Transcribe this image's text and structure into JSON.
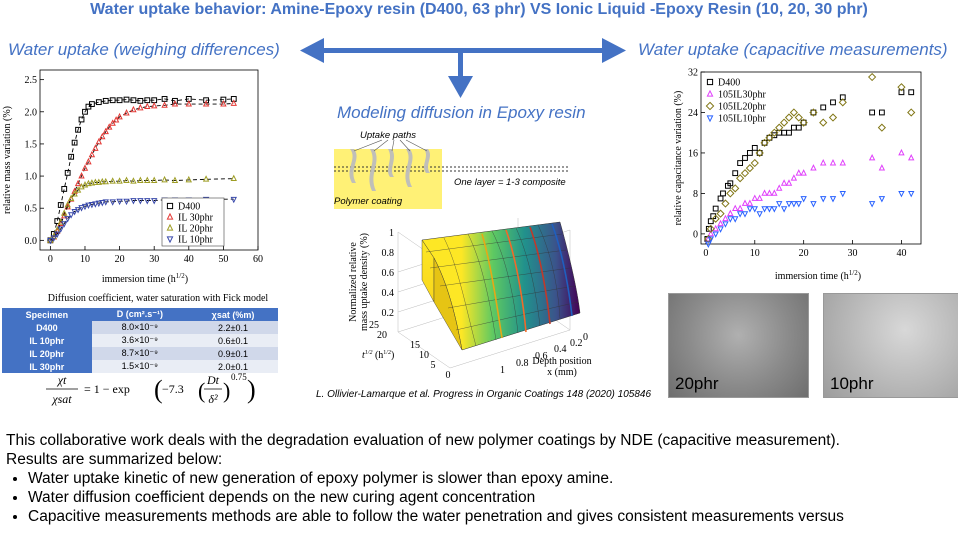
{
  "header": {
    "title": "Water uptake behavior: Amine-Epoxy resin (D400, 63 phr) VS Ionic Liquid -Epoxy Resin (10, 20, 30 phr)"
  },
  "sections": {
    "left": "Water uptake (weighing differences)",
    "middle": "Modeling diffusion in Epoxy resin",
    "right": "Water uptake (capacitive measurements)"
  },
  "left_chart": {
    "ylabel": "relative mass variation (%)",
    "xlabel": "immersion time (h",
    "xlabel_sup": "1/2",
    "xlabel_end": ")",
    "xticks": [
      "0",
      "10",
      "20",
      "30",
      "40",
      "50",
      "60"
    ],
    "yticks": [
      "0.0",
      "0.5",
      "1.0",
      "1.5",
      "2.0",
      "2.5"
    ]
  },
  "right_chart": {
    "ylabel": "relative capacitance variation (%)",
    "xlabel": "immersion time (h",
    "xlabel_sup": "1/2",
    "xlabel_end": ")",
    "xticks": [
      "0",
      "10",
      "20",
      "30",
      "40"
    ],
    "yticks": [
      "0",
      "8",
      "16",
      "24",
      "32"
    ]
  },
  "chart_data": [
    {
      "type": "scatter",
      "xlabel": "immersion time (h1/2)",
      "ylabel": "relative mass variation (%)",
      "xlim": [
        -3,
        60
      ],
      "ylim": [
        -0.15,
        2.65
      ],
      "legend_position": "bottom-right",
      "series": [
        {
          "name": "D400",
          "color": "#000000",
          "marker": "square",
          "fit": true,
          "x": [
            0,
            1,
            2,
            3,
            4,
            5,
            6,
            7,
            8,
            9,
            10,
            11,
            12,
            14,
            16,
            18,
            20,
            22,
            24,
            26,
            28,
            30,
            33,
            36,
            40,
            45,
            50,
            53
          ],
          "y": [
            0.0,
            0.1,
            0.3,
            0.55,
            0.8,
            1.05,
            1.3,
            1.52,
            1.72,
            1.88,
            2.0,
            2.08,
            2.12,
            2.15,
            2.17,
            2.18,
            2.18,
            2.19,
            2.18,
            2.17,
            2.18,
            2.18,
            2.2,
            2.17,
            2.2,
            2.18,
            2.19,
            2.2
          ]
        },
        {
          "name": "IL 30phr",
          "color": "#e53935",
          "marker": "triangle-up",
          "fit": true,
          "x": [
            0,
            1,
            2,
            3,
            4,
            5,
            6,
            7,
            8,
            9,
            10,
            11,
            12,
            13,
            14,
            15,
            16,
            17,
            18,
            19,
            20,
            22,
            24,
            26,
            28,
            30,
            33,
            36,
            40,
            45,
            50,
            53
          ],
          "y": [
            0.0,
            0.05,
            0.14,
            0.26,
            0.38,
            0.52,
            0.64,
            0.76,
            0.88,
            1.0,
            1.12,
            1.22,
            1.33,
            1.43,
            1.53,
            1.61,
            1.69,
            1.76,
            1.82,
            1.87,
            1.92,
            1.98,
            2.03,
            2.06,
            2.08,
            2.09,
            2.1,
            2.12,
            2.12,
            2.12,
            2.12,
            2.13
          ]
        },
        {
          "name": "IL 20phr",
          "color": "#9e9d24",
          "marker": "triangle-up",
          "fit": true,
          "x": [
            0,
            1,
            2,
            3,
            4,
            5,
            6,
            7,
            8,
            9,
            10,
            11,
            12,
            13,
            14,
            15,
            16,
            18,
            20,
            22,
            24,
            26,
            28,
            30,
            33,
            36,
            40,
            45,
            53
          ],
          "y": [
            0.0,
            0.06,
            0.16,
            0.28,
            0.42,
            0.55,
            0.65,
            0.72,
            0.78,
            0.83,
            0.86,
            0.88,
            0.89,
            0.9,
            0.9,
            0.91,
            0.91,
            0.92,
            0.92,
            0.93,
            0.92,
            0.93,
            0.93,
            0.93,
            0.94,
            0.93,
            0.94,
            0.95,
            0.96
          ]
        },
        {
          "name": "IL 10phr",
          "color": "#3949ab",
          "marker": "triangle-down",
          "fit": true,
          "x": [
            0,
            1,
            2,
            3,
            4,
            5,
            6,
            7,
            8,
            9,
            10,
            11,
            12,
            13,
            14,
            15,
            16,
            18,
            20,
            22,
            24,
            26,
            28,
            30,
            33,
            36,
            40,
            45,
            53
          ],
          "y": [
            0.0,
            0.04,
            0.1,
            0.18,
            0.26,
            0.34,
            0.4,
            0.45,
            0.48,
            0.51,
            0.53,
            0.55,
            0.56,
            0.57,
            0.58,
            0.59,
            0.6,
            0.6,
            0.61,
            0.61,
            0.62,
            0.62,
            0.62,
            0.62,
            0.63,
            0.63,
            0.63,
            0.64,
            0.64
          ]
        }
      ]
    },
    {
      "type": "scatter",
      "xlabel": "immersion time (h1/2)",
      "ylabel": "relative capacitance variation (%)",
      "xlim": [
        -1,
        44
      ],
      "ylim": [
        -2,
        32
      ],
      "legend_position": "top-left",
      "series": [
        {
          "name": "D400",
          "color": "#000000",
          "marker": "square",
          "x": [
            0.3,
            0.6,
            1,
            1.5,
            2,
            3,
            3.5,
            4.5,
            5,
            6,
            7,
            8,
            9,
            10,
            11,
            12,
            13,
            14,
            15,
            16,
            17,
            18,
            19,
            20,
            22,
            24,
            26,
            28,
            34,
            36,
            40,
            42
          ],
          "y": [
            -1,
            1,
            2.5,
            3.5,
            5,
            7,
            8,
            9.5,
            10,
            12,
            14,
            15,
            16,
            17,
            16,
            18,
            19,
            19.5,
            20,
            20,
            20,
            21,
            21,
            22,
            24,
            25,
            26,
            27,
            24,
            24,
            28,
            28
          ]
        },
        {
          "name": "105IL30phr",
          "color": "#e040fb",
          "marker": "triangle-up",
          "x": [
            0.5,
            1,
            2,
            3,
            4,
            5,
            6,
            7,
            8,
            9,
            10,
            11,
            12,
            13,
            14,
            15,
            16,
            17,
            18,
            19,
            20,
            22,
            24,
            26,
            28,
            34,
            36,
            40,
            42
          ],
          "y": [
            -1,
            0,
            1,
            2,
            3,
            4,
            5,
            5,
            6,
            6,
            7,
            7,
            8,
            8,
            8,
            9,
            10,
            10,
            11,
            12,
            12,
            13,
            14,
            14,
            14,
            15,
            13,
            16,
            15
          ]
        },
        {
          "name": "105IL20phr",
          "color": "#827717",
          "marker": "diamond",
          "x": [
            0.5,
            1,
            2,
            3,
            4,
            5,
            6,
            7,
            8,
            9,
            10,
            11,
            12,
            13,
            14,
            15,
            16,
            17,
            18,
            19,
            20,
            22,
            24,
            26,
            28,
            34,
            36,
            40,
            42
          ],
          "y": [
            -1,
            1,
            3,
            4,
            6,
            8,
            9,
            11,
            12,
            13,
            14,
            16,
            18,
            19,
            20,
            21,
            22,
            23,
            24,
            23,
            22,
            24,
            22,
            23,
            26,
            31,
            21,
            29,
            24
          ]
        },
        {
          "name": "105IL10phr",
          "color": "#2962ff",
          "marker": "triangle-down",
          "x": [
            0.5,
            1,
            2,
            3,
            4,
            5,
            6,
            7,
            8,
            9,
            10,
            11,
            12,
            13,
            14,
            15,
            16,
            17,
            18,
            19,
            20,
            22,
            24,
            26,
            28,
            34,
            36,
            40,
            42
          ],
          "y": [
            -2,
            -1,
            0,
            1,
            2,
            3,
            3,
            4,
            4,
            5,
            5,
            4,
            5,
            5,
            5,
            6,
            5,
            6,
            6,
            6,
            7,
            6,
            7,
            7,
            8,
            6,
            7,
            8,
            8
          ]
        }
      ]
    }
  ],
  "table": {
    "caption": "Diffusion coefficient, water saturation with Fick model",
    "headers": [
      "Specimen",
      "D (cm².s⁻¹)",
      "χsat (%m)"
    ],
    "rows": [
      [
        "D400",
        "8.0×10⁻⁹",
        "2.2±0.1"
      ],
      [
        "IL 10phr",
        "3.6×10⁻⁹",
        "0.6±0.1"
      ],
      [
        "IL 20phr",
        "8.7×10⁻⁹",
        "0.9±0.1"
      ],
      [
        "IL 30phr",
        "1.5×10⁻⁹",
        "2.0±0.1"
      ]
    ],
    "formula": {
      "lhs_num": "χt",
      "lhs_den": "χsat",
      "rhs": "= 1 − exp",
      "coef": "−7.3",
      "inner_num": "Dt",
      "inner_den": "δ²",
      "power": "0.75"
    }
  },
  "schematic": {
    "uptake_label": "Uptake paths",
    "coating_label": "Polymer coating",
    "layer_label": "One layer = 1-3 composite",
    "fill_color": "#fff176"
  },
  "surface_plot": {
    "zlabel_line1": "Normalized relative",
    "zlabel_line2": "mass uptake density (%)",
    "zticks": [
      "0.2",
      "0.4",
      "0.6",
      "0.8",
      "1"
    ],
    "tticks": [
      "0",
      "5",
      "10",
      "15",
      "20",
      "25"
    ],
    "tlabel": "t",
    "tlabel_sup": "1/2",
    "tlabel_unit": "(h",
    "tlabel_unit_sup": "1/2",
    "tlabel_unit_end": ")",
    "xticks": [
      "0",
      "0.2",
      "0.4",
      "0.6",
      "0.8",
      "1"
    ],
    "xlabel_line1": "Depth position",
    "xlabel_line2": "x (mm)"
  },
  "citation": "L. Ollivier-Lamarque et al. Progress in Organic Coatings 148 (2020) 105846",
  "photos": [
    {
      "label": "20phr"
    },
    {
      "label": "10phr"
    }
  ],
  "summary": {
    "intro_line1": "This collaborative work deals with the degradation evaluation of new polymer coatings by NDE (capacitive measurement).",
    "intro_line2": "Results are summarized below:",
    "bullets": [
      "Water uptake kinetic of new generation of epoxy polymer is slower than epoxy amine.",
      "Water diffusion coefficient depends on the new curing agent concentration",
      "Capacitive measurements methods are able to follow the water penetration and gives consistent measurements versus"
    ]
  }
}
